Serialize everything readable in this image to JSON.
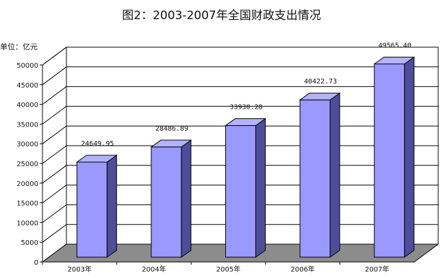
{
  "chart_data": {
    "type": "bar",
    "title": "图2：2003-2007年全国财政支出情况",
    "ylabel": "单位：亿元",
    "xlabel": "",
    "categories": [
      "2003年",
      "2004年",
      "2005年",
      "2006年",
      "2007年"
    ],
    "values": [
      24649.95,
      28486.89,
      33930.28,
      40422.73,
      49565.4
    ],
    "data_labels": [
      "24649.95",
      "28486.89",
      "33930.28",
      "40422.73",
      "49565.40"
    ],
    "ylim": [
      0,
      50000
    ],
    "yticks": [
      0,
      5000,
      10000,
      15000,
      20000,
      25000,
      30000,
      35000,
      40000,
      45000,
      50000
    ],
    "grid": true,
    "legend": "none",
    "style": "3d-column",
    "colors": {
      "bar_front": "#9999ff",
      "bar_side": "#4d4d99",
      "bar_top": "#b3b3ff",
      "floor": "#8c8c8c",
      "wall": "#ffffff",
      "grid": "#000000"
    }
  }
}
